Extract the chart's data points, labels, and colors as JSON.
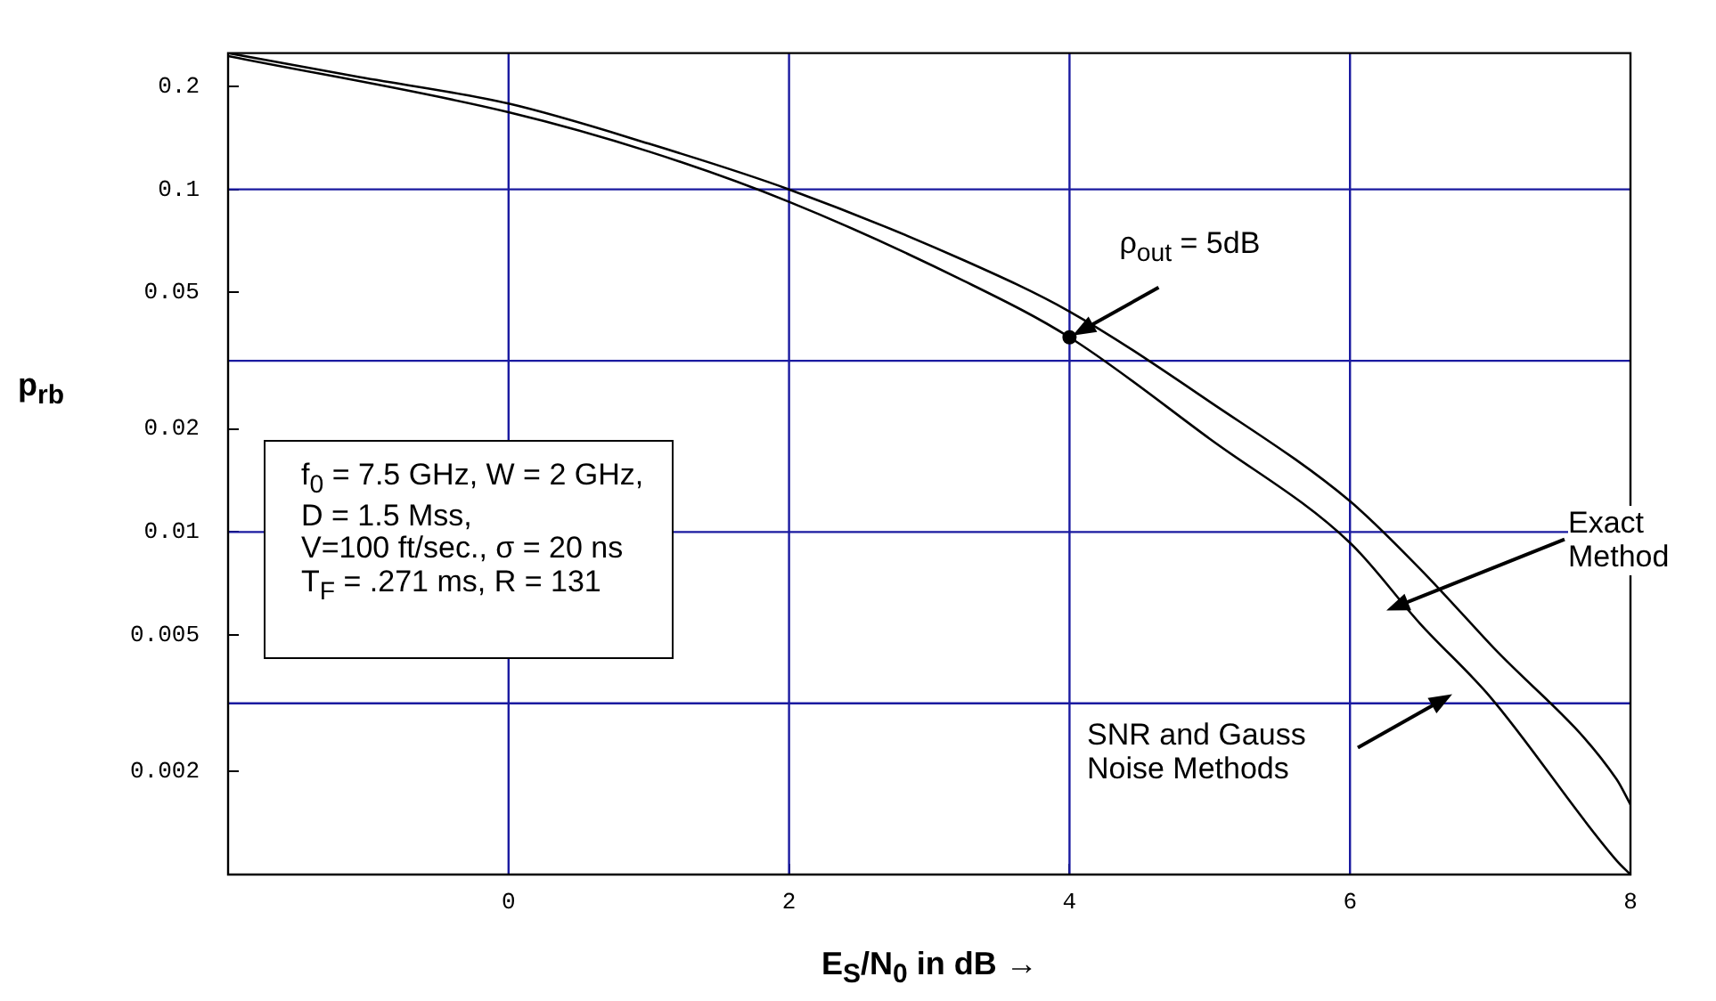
{
  "chart_data": {
    "type": "line",
    "xlabel": "E$_{S}$/N$_{0}$ in dB →",
    "ylabel": "p$_{rb}$",
    "log": "y",
    "grid": false,
    "legend": false,
    "marker": "none",
    "line_style": "solid",
    "xlim": [
      -2,
      8
    ],
    "xticks": [
      0,
      2,
      4,
      6,
      8
    ],
    "ylim": [
      0.001,
      0.25
    ],
    "yticks": [
      0.2,
      0.1,
      0.05,
      0.02,
      0.01,
      0.005,
      0.002
    ],
    "series": [
      {
        "color": "#000000",
        "x": [
          -2,
          -1.1,
          0,
          1,
          2,
          3.25,
          4,
          5,
          6,
          6.5,
          7,
          7.9,
          8
        ],
        "values": [
          0.25,
          0.214,
          0.178,
          0.136,
          0.1,
          0.062,
          0.044,
          0.024,
          0.0123,
          0.0078,
          0.0047,
          0.0019,
          0.0016
        ]
      },
      {
        "color": "#000000",
        "x": [
          -2,
          0,
          1,
          2,
          3.25,
          4,
          5,
          6,
          6.5,
          7,
          7.9,
          8
        ],
        "values": [
          0.245,
          0.168,
          0.129,
          0.092,
          0.054,
          0.037,
          0.0187,
          0.0093,
          0.0054,
          0.0033,
          0.0011,
          0.001
        ]
      }
    ],
    "ref_lines": [
      {
        "axis": "x",
        "value": 0,
        "color": "#1a1aa0"
      },
      {
        "axis": "x",
        "value": 2,
        "color": "#1a1aa0"
      },
      {
        "axis": "x",
        "value": 4,
        "color": "#1a1aa0"
      },
      {
        "axis": "x",
        "value": 6,
        "color": "#1a1aa0"
      },
      {
        "axis": "y",
        "value": 0.1,
        "color": "#1a1aa0"
      },
      {
        "axis": "y",
        "value": 0.0316,
        "color": "#1a1aa0"
      },
      {
        "axis": "y",
        "value": 0.01,
        "color": "#1a1aa0"
      },
      {
        "axis": "y",
        "value": 0.00316,
        "color": "#1a1aa0"
      }
    ],
    "annotations": [
      "f$_{0}$ = 7.5 GHz, W = 2 GHz,",
      "D = 1.5 Mss,",
      "V=100 ft/sec., σ = 20 ns",
      "T$_{F}$ = .271 ms, R = 131",
      {
        "text": "ρ$_{out}$ = 5dB",
        "x": 4,
        "y": 0.037
      },
      "Exact Method",
      "SNR and Gauss Noise Methods"
    ]
  }
}
